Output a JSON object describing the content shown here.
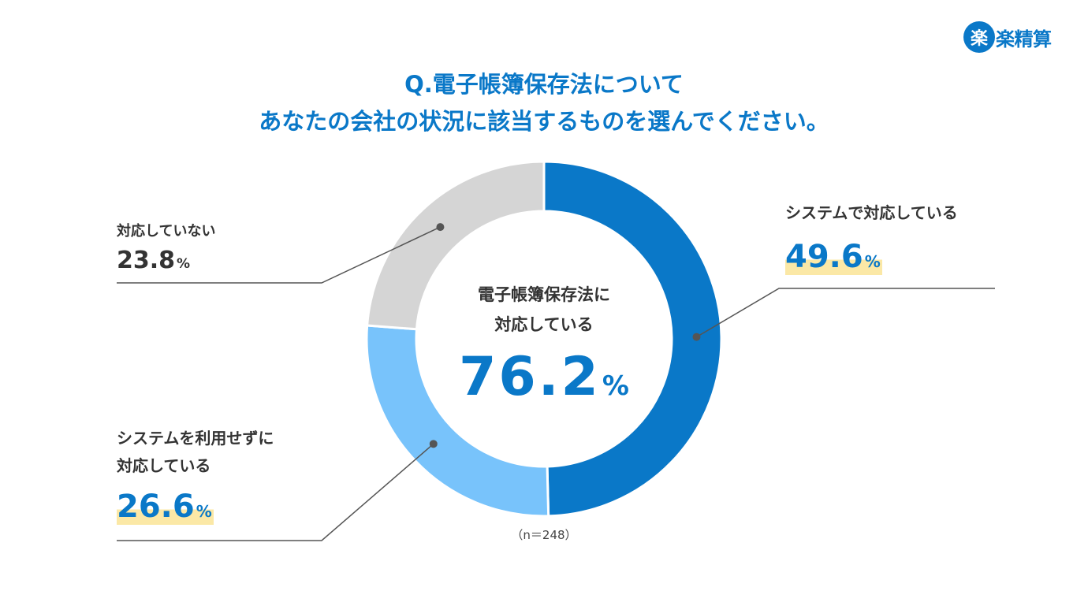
{
  "brand": {
    "mark": "楽",
    "name": "楽精算",
    "color": "#0a78c8"
  },
  "title": {
    "line1": "Q.電子帳簿保存法について",
    "line2": "あなたの会社の状況に該当するものを選んでください。"
  },
  "center": {
    "label_line1": "電子帳簿保存法に",
    "label_line2": "対応している",
    "value": "76.2",
    "unit": "%"
  },
  "sample_size": "（n＝248）",
  "chart_data": {
    "type": "pie",
    "style": "donut",
    "unit": "%",
    "slices": [
      {
        "label": "システムで対応している",
        "value": 49.6,
        "display": "49.6",
        "color": "#0a78c8"
      },
      {
        "label": "システムを利用せずに対応している",
        "label_lines": [
          "システムを利用せずに",
          "対応している"
        ],
        "value": 26.6,
        "display": "26.6",
        "color": "#78c3fb"
      },
      {
        "label": "対応していない",
        "value": 23.8,
        "display": "23.8",
        "color": "#d5d5d5"
      }
    ]
  }
}
